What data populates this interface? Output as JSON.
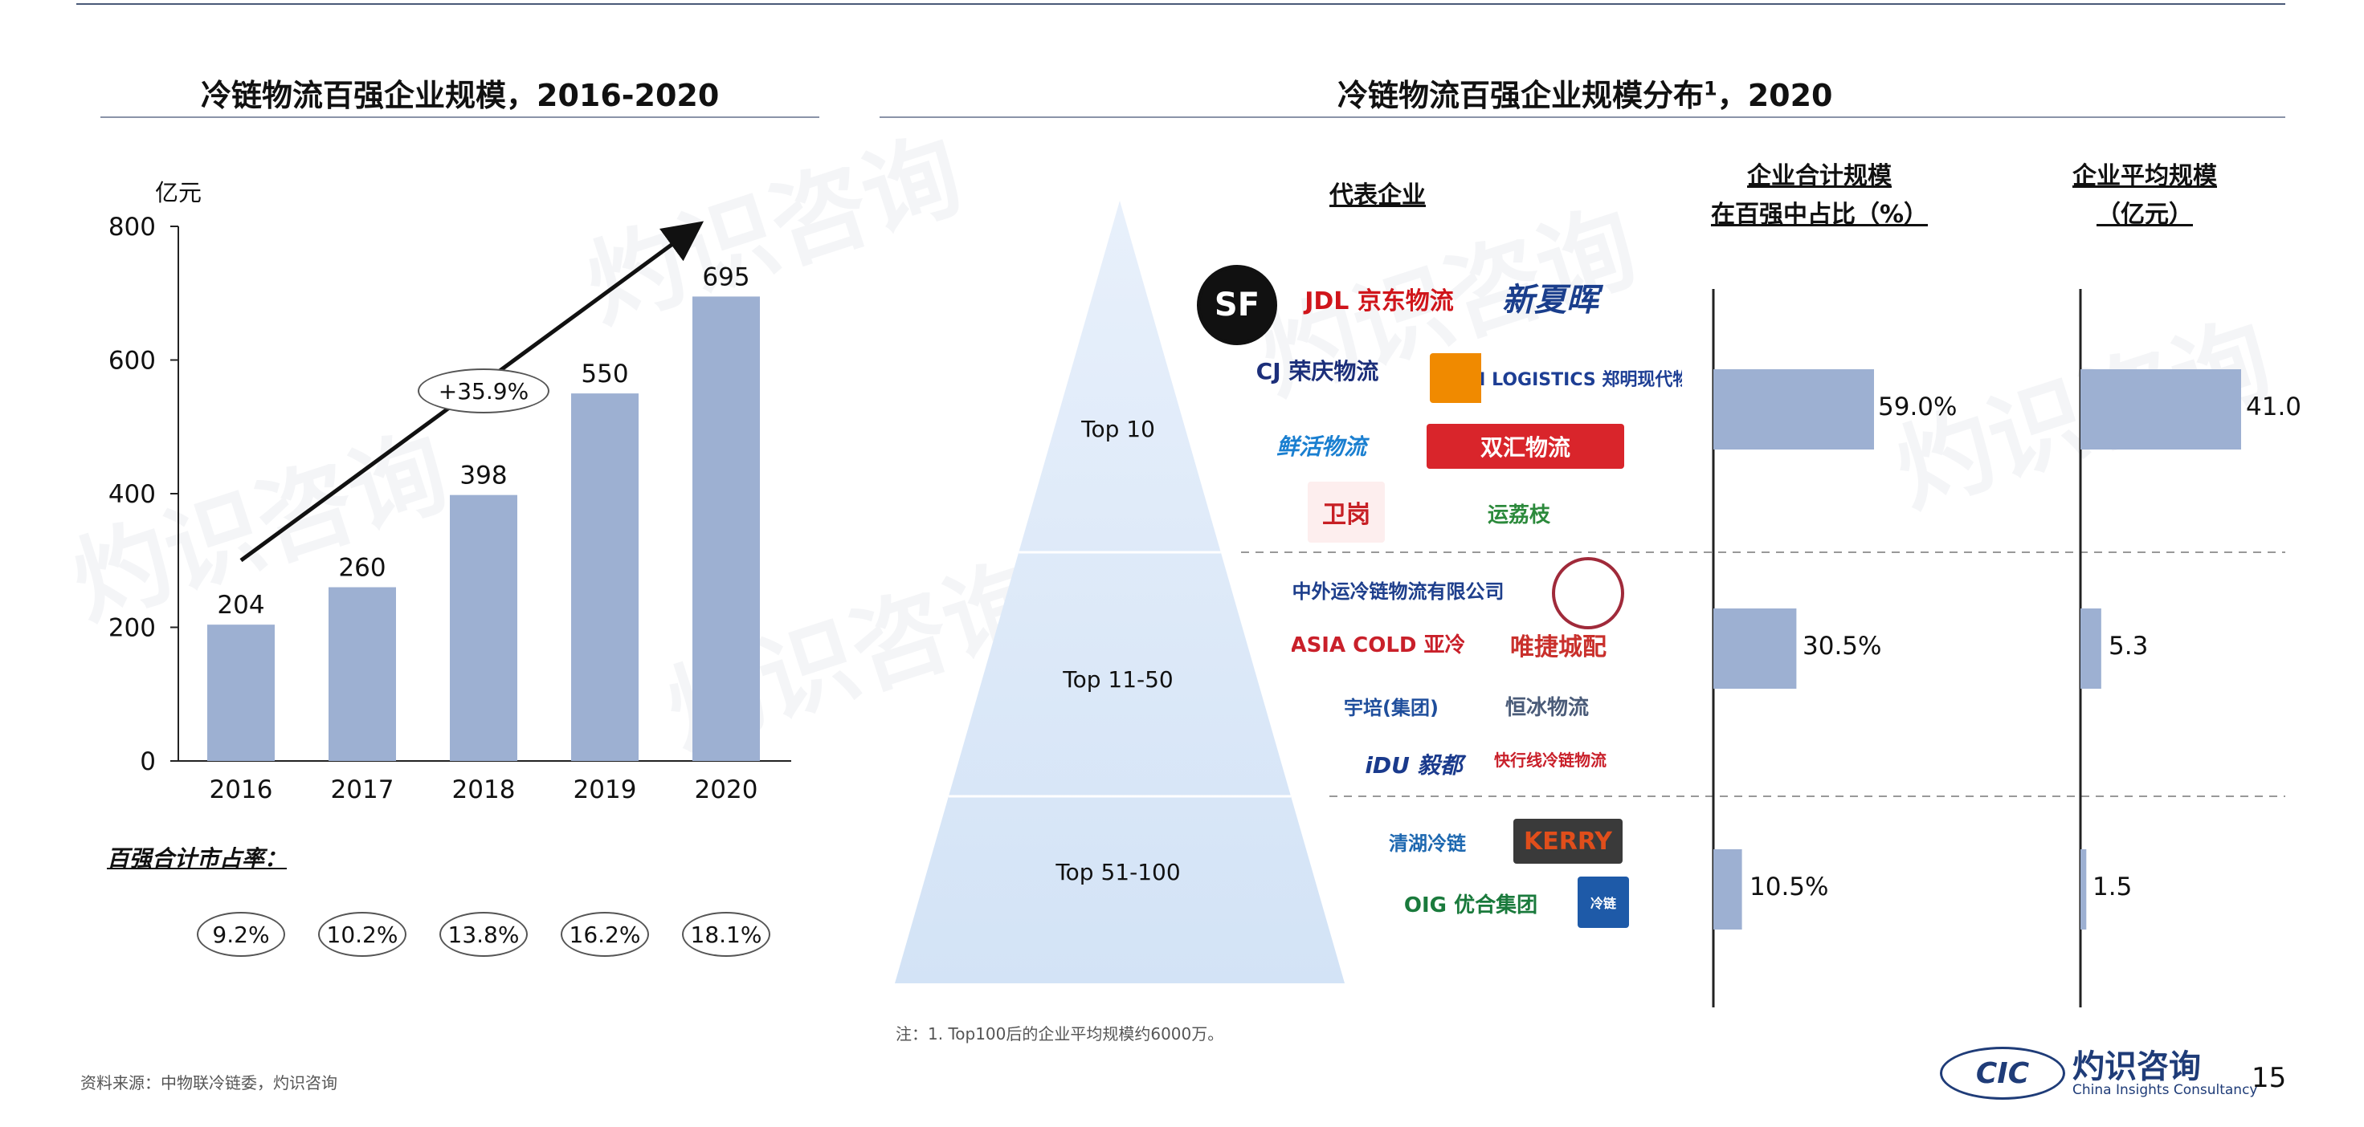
{
  "left": {
    "title": "冷链物流百强企业规模，2016-2020",
    "unit": "亿元",
    "share_label": "百强合计市占率：",
    "share_values": [
      "9.2%",
      "10.2%",
      "13.8%",
      "16.2%",
      "18.1%"
    ],
    "cagr_label": "+35.9%"
  },
  "right": {
    "title": "冷链物流百强企业规模分布",
    "title_sup": "1",
    "title_suffix": "，2020",
    "header_companies": "代表企业",
    "header_share_line1": "企业合计规模",
    "header_share_line2": "在百强中占比（%）",
    "header_avg_line1": "企业平均规模",
    "header_avg_line2": "（亿元）",
    "tiers": [
      "Top 10",
      "Top 11-50",
      "Top 51-100"
    ],
    "note": "注：1. Top100后的企业平均规模约6000万。"
  },
  "logos": {
    "sf": "SF",
    "jdl": "JDL 京东物流",
    "xiahui": "新夏晖",
    "cj": "CJ 荣庆物流",
    "zm": "ZM LOGISTICS 郑明现代物流",
    "xianxian": "鲜活物流",
    "shuanghui": "双汇物流",
    "weigang": "卫岗",
    "yunlizhi": "运荔枝",
    "sinotrans": "中外运冷链物流有限公司",
    "asiacold": "ASIA COLD 亚冷",
    "weijie": "唯捷城配",
    "yupei": "宇培(集团)",
    "hengbing": "恒冰物流",
    "idu": "iDU 毅都",
    "kuaixing": "快行线冷链物流",
    "qinghu": "清湖冷链",
    "kerry": "KERRY",
    "oig": "OIG 优合集团",
    "blue": "冷链"
  },
  "footer": {
    "source": "资料来源：中物联冷链委，灼识咨询",
    "brand_cn": "灼识咨询",
    "brand_en": "China Insights Consultancy",
    "brand_abbr": "CIC",
    "page": "15"
  },
  "colors": {
    "bar": "#9db0d2",
    "pyramid_top": "#e8f0fb",
    "pyramid_bottom": "#d3e3f6"
  },
  "chart_data": [
    {
      "type": "bar",
      "title": "冷链物流百强企业规模，2016-2020",
      "ylabel": "亿元",
      "categories": [
        "2016",
        "2017",
        "2018",
        "2019",
        "2020"
      ],
      "values": [
        204,
        260,
        398,
        550,
        695
      ],
      "ylim": [
        0,
        800
      ],
      "yticks": [
        0,
        200,
        400,
        600,
        800
      ],
      "grid": false
    },
    {
      "type": "bar",
      "orientation": "horizontal",
      "title": "企业合计规模在百强中占比（%）",
      "categories": [
        "Top 10",
        "Top 11-50",
        "Top 51-100"
      ],
      "values": [
        59.0,
        30.5,
        10.5
      ],
      "labels": [
        "59.0%",
        "30.5%",
        "10.5%"
      ]
    },
    {
      "type": "bar",
      "orientation": "horizontal",
      "title": "企业平均规模（亿元）",
      "categories": [
        "Top 10",
        "Top 11-50",
        "Top 51-100"
      ],
      "values": [
        41.0,
        5.3,
        1.5
      ],
      "labels": [
        "41.0",
        "5.3",
        "1.5"
      ]
    }
  ]
}
